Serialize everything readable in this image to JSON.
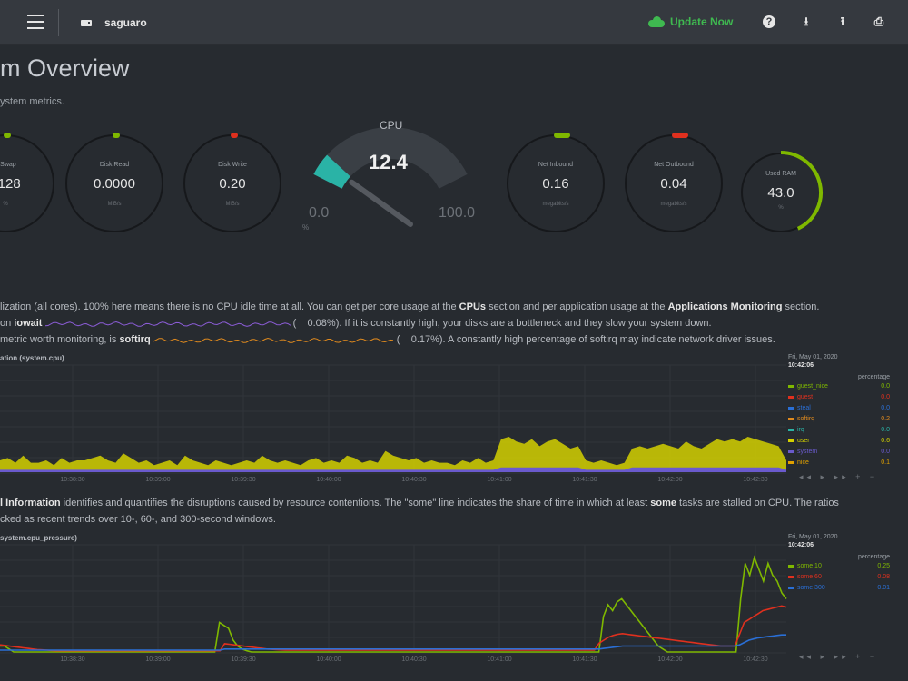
{
  "topbar": {
    "host": "saguaro",
    "update_label": "Update Now",
    "icons": [
      "menu-icon",
      "server-icon",
      "cloud-icon",
      "help-icon",
      "download-icon",
      "upload-icon",
      "print-icon"
    ],
    "help_glyph": "?",
    "download_glyph": "⭳",
    "upload_glyph": "⭱",
    "print_glyph": "⎙"
  },
  "page": {
    "title": "m Overview",
    "subtitle": "ystem metrics."
  },
  "gauges": [
    {
      "id": "swap",
      "label": "e Swap",
      "value": "0128",
      "unit": "%",
      "dot_color": "#7fb800"
    },
    {
      "id": "disk-read",
      "label": "Disk Read",
      "value": "0.0000",
      "unit": "MiB/s",
      "dot_color": "#7fb800"
    },
    {
      "id": "disk-write",
      "label": "Disk Write",
      "value": "0.20",
      "unit": "MiB/s",
      "dot_color": "#e0301e"
    },
    {
      "id": "net-inbound",
      "label": "Net Inbound",
      "value": "0.16",
      "unit": "megabits/s",
      "dot_color": "#7fb800"
    },
    {
      "id": "net-outbound",
      "label": "Net Outbound",
      "value": "0.04",
      "unit": "megabits/s",
      "dot_color": "#e0301e"
    },
    {
      "id": "used-ram",
      "label": "Used RAM",
      "value": "43.0",
      "unit": "%",
      "dot_color": "#7fb800",
      "fraction": 0.43
    }
  ],
  "cpu_gauge": {
    "title": "CPU",
    "value": 12.4,
    "value_label": "12.4",
    "min": "0.0",
    "max": "100.0",
    "unit": "%",
    "color": "#2ab3a6"
  },
  "descriptions": {
    "cpu_line1_pre": "lization (all cores). 100% here means there is no CPU idle time at all. You can get per core usage at the ",
    "cpu_line1_b1": "CPUs",
    "cpu_line1_mid": " section and per application usage at the ",
    "cpu_line1_b2": "Applications Monitoring",
    "cpu_line1_post": " section.",
    "cpu_line2_pre": "on ",
    "cpu_line2_b": "iowait",
    "cpu_line2_val": "0.08%). If it is constantly high, your disks are a bottleneck and they slow your system down.",
    "cpu_line3_pre": "metric worth monitoring, is ",
    "cpu_line3_b": "softirq",
    "cpu_line3_val": "0.17%). A constantly high percentage of softirq may indicate network driver issues.",
    "paren_open": "(",
    "pressure_line1_b": "l Information",
    "pressure_line1_pre": " identifies and quantifies the disruptions caused by resource contentions. The \"some\" line indicates the share of time in which at least ",
    "pressure_line1_b2": "some",
    "pressure_line1_post": " tasks are stalled on CPU. The ratios",
    "pressure_line2": "cked as recent trends over 10-, 60-, and 300-second windows."
  },
  "chart_data": [
    {
      "type": "area",
      "title": "ation (system.cpu)",
      "x": [
        "10:38:30",
        "10:39:00",
        "10:39:30",
        "10:40:00",
        "10:40:30",
        "10:41:00",
        "10:41:30",
        "10:42:00",
        "10:42:30",
        "10:43:00"
      ],
      "units": "percentage",
      "date": "Fri, May 01, 2020",
      "time": "10:42:06",
      "series": [
        {
          "name": "guest_nice",
          "value": "0.0",
          "color": "#7fb800"
        },
        {
          "name": "guest",
          "value": "0.0",
          "color": "#e0301e"
        },
        {
          "name": "steal",
          "value": "0.0",
          "color": "#2a6fd6"
        },
        {
          "name": "softirq",
          "value": "0.2",
          "color": "#e08a1e"
        },
        {
          "name": "irq",
          "value": "0.0",
          "color": "#2ab3a6"
        },
        {
          "name": "user",
          "value": "0.6",
          "color": "#d4d000"
        },
        {
          "name": "system",
          "value": "0.0",
          "color": "#6a5acd"
        },
        {
          "name": "nice",
          "value": "0.1",
          "color": "#e0a000"
        }
      ],
      "user_values": [
        4,
        5,
        3,
        6,
        3,
        3,
        4,
        2,
        5,
        3,
        4,
        4,
        5,
        6,
        4,
        3,
        7,
        5,
        3,
        4,
        2,
        3,
        4,
        2,
        6,
        4,
        3,
        2,
        4,
        3,
        2,
        3,
        4,
        3,
        6,
        4,
        3,
        4,
        3,
        2,
        4,
        5,
        3,
        4,
        3,
        6,
        5,
        3,
        4,
        3,
        8,
        6,
        5,
        4,
        5,
        3,
        4,
        3,
        3,
        2,
        4,
        3,
        5,
        3,
        4,
        12,
        13,
        11,
        10,
        12,
        9,
        11,
        12,
        10,
        8,
        9,
        4,
        3,
        4,
        3,
        2,
        3,
        8,
        9,
        8,
        9,
        10,
        9,
        8,
        11,
        9,
        8,
        10,
        12,
        11,
        12,
        11,
        13,
        12,
        11,
        10,
        9,
        4
      ],
      "system_values": [
        1,
        1,
        1,
        1,
        1,
        1,
        1,
        1,
        1,
        1,
        1,
        1,
        1,
        1,
        1,
        1,
        1,
        1,
        1,
        1,
        1,
        1,
        1,
        1,
        1,
        1,
        1,
        1,
        1,
        1,
        1,
        1,
        1,
        1,
        1,
        1,
        1,
        1,
        1,
        1,
        1,
        1,
        1,
        1,
        1,
        1,
        1,
        1,
        1,
        1,
        1,
        1,
        1,
        1,
        1,
        1,
        1,
        1,
        1,
        1,
        1,
        1,
        1,
        1,
        1,
        2,
        2,
        2,
        2,
        2,
        2,
        2,
        2,
        2,
        2,
        2,
        1,
        1,
        1,
        1,
        1,
        1,
        2,
        2,
        2,
        2,
        2,
        2,
        2,
        2,
        2,
        2,
        2,
        2,
        2,
        2,
        2,
        2,
        2,
        2,
        2,
        2,
        1
      ]
    },
    {
      "type": "line",
      "title": "system.cpu_pressure)",
      "x": [
        "10:38:30",
        "10:39:00",
        "10:39:30",
        "10:40:00",
        "10:40:30",
        "10:41:00",
        "10:41:30",
        "10:42:00",
        "10:42:30",
        "10:43:00"
      ],
      "units": "percentage",
      "date": "Fri, May 01, 2020",
      "time": "10:42:06",
      "series": [
        {
          "name": "some 10",
          "value": "0.25",
          "color": "#7fb800"
        },
        {
          "name": "some 60",
          "value": "0.08",
          "color": "#e0301e"
        },
        {
          "name": "some 300",
          "value": "0.01",
          "color": "#2a6fd6"
        }
      ],
      "some10": [
        1,
        1,
        0.5,
        0,
        0,
        0,
        0,
        0,
        0,
        0,
        0,
        0,
        0,
        0,
        0,
        0,
        0,
        0,
        0,
        0,
        0,
        0,
        0,
        0,
        0,
        0,
        0,
        0,
        0,
        0,
        0,
        0,
        0,
        0,
        0,
        0,
        0,
        0,
        0,
        0,
        0,
        0,
        0,
        0,
        0,
        0,
        0,
        0,
        5,
        4.5,
        4,
        2,
        1,
        0.5,
        0.2,
        0,
        0,
        0,
        0,
        0,
        0,
        0,
        0,
        0,
        0,
        0,
        0,
        0,
        0,
        0,
        0,
        0,
        0,
        0,
        0,
        0,
        0,
        0,
        0,
        0,
        0,
        0,
        0,
        0,
        0,
        0,
        0,
        0,
        0,
        0,
        0,
        0,
        0,
        0,
        0,
        0,
        0,
        0,
        0,
        0,
        0,
        0,
        0,
        0,
        0,
        0,
        0,
        0,
        0,
        0,
        0,
        0,
        0,
        0,
        0,
        0,
        0,
        0,
        0,
        0,
        0,
        0,
        0,
        0,
        0,
        0,
        0,
        0,
        0,
        0,
        0,
        0,
        6,
        8,
        7,
        8.5,
        9,
        8,
        7,
        6,
        5,
        4,
        3,
        2,
        1,
        0.5,
        0,
        0,
        0,
        0,
        0,
        0,
        0,
        0,
        0,
        0,
        0,
        0,
        0,
        0,
        0,
        0,
        9,
        15,
        13,
        16,
        14,
        12,
        15,
        13,
        12,
        10,
        9
      ],
      "some60": [
        1.2,
        1.1,
        1,
        0.9,
        0.8,
        0.7,
        0.6,
        0.5,
        0.4,
        0.35,
        0.3,
        0.25,
        0.2,
        0.2,
        0.2,
        0.2,
        0.2,
        0.2,
        0.2,
        0.2,
        0.2,
        0.2,
        0.2,
        0.2,
        0.2,
        0.2,
        0.2,
        0.2,
        0.2,
        0.2,
        0.2,
        0.2,
        0.2,
        0.2,
        0.2,
        0.2,
        0.2,
        0.2,
        0.2,
        0.2,
        0.2,
        0.2,
        0.2,
        0.2,
        0.2,
        0.2,
        0.2,
        0.2,
        1.4,
        1.3,
        1.2,
        1.1,
        1,
        0.9,
        0.8,
        0.7,
        0.6,
        0.5,
        0.45,
        0.4,
        0.35,
        0.3,
        0.3,
        0.3,
        0.3,
        0.3,
        0.3,
        0.3,
        0.3,
        0.3,
        0.3,
        0.3,
        0.3,
        0.3,
        0.3,
        0.3,
        0.3,
        0.3,
        0.3,
        0.3,
        0.3,
        0.3,
        0.3,
        0.3,
        0.3,
        0.3,
        0.3,
        0.3,
        0.3,
        0.3,
        0.3,
        0.3,
        0.3,
        0.3,
        0.3,
        0.3,
        0.3,
        0.3,
        0.3,
        0.3,
        0.3,
        0.3,
        0.3,
        0.3,
        0.3,
        0.3,
        0.3,
        0.3,
        0.3,
        0.3,
        0.3,
        0.3,
        0.3,
        0.3,
        0.3,
        0.3,
        0.3,
        0.3,
        0.3,
        0.3,
        0.3,
        0.3,
        0.3,
        0.3,
        0.3,
        0.3,
        0.3,
        0.3,
        1.5,
        2,
        2.5,
        2.8,
        3,
        3.1,
        3,
        2.9,
        2.8,
        2.7,
        2.6,
        2.5,
        2.4,
        2.3,
        2.2,
        2.1,
        2,
        1.9,
        1.8,
        1.7,
        1.6,
        1.5,
        1.4,
        1.3,
        1.2,
        1.1,
        1,
        1,
        1,
        1,
        3,
        5,
        5.5,
        6,
        6.5,
        7,
        7.2,
        7.4,
        7.6,
        7.8,
        7.6
      ],
      "some300": [
        0.3,
        0.3,
        0.3,
        0.3,
        0.3,
        0.3,
        0.3,
        0.3,
        0.3,
        0.3,
        0.3,
        0.3,
        0.3,
        0.3,
        0.3,
        0.3,
        0.3,
        0.3,
        0.3,
        0.3,
        0.3,
        0.3,
        0.3,
        0.3,
        0.3,
        0.3,
        0.3,
        0.3,
        0.3,
        0.3,
        0.3,
        0.3,
        0.3,
        0.3,
        0.3,
        0.3,
        0.3,
        0.3,
        0.3,
        0.3,
        0.3,
        0.3,
        0.3,
        0.3,
        0.3,
        0.3,
        0.3,
        0.3,
        0.5,
        0.5,
        0.5,
        0.5,
        0.5,
        0.5,
        0.5,
        0.5,
        0.5,
        0.5,
        0.5,
        0.5,
        0.5,
        0.5,
        0.5,
        0.5,
        0.5,
        0.5,
        0.5,
        0.5,
        0.5,
        0.5,
        0.5,
        0.5,
        0.5,
        0.5,
        0.5,
        0.5,
        0.5,
        0.5,
        0.5,
        0.5,
        0.5,
        0.5,
        0.5,
        0.5,
        0.5,
        0.5,
        0.5,
        0.5,
        0.5,
        0.5,
        0.5,
        0.5,
        0.5,
        0.5,
        0.5,
        0.5,
        0.5,
        0.5,
        0.5,
        0.5,
        0.5,
        0.5,
        0.5,
        0.5,
        0.5,
        0.5,
        0.5,
        0.5,
        0.5,
        0.5,
        0.5,
        0.5,
        0.5,
        0.5,
        0.5,
        0.5,
        0.5,
        0.5,
        0.5,
        0.5,
        0.5,
        0.5,
        0.5,
        0.5,
        0.5,
        0.5,
        0.5,
        0.5,
        0.5,
        0.6,
        0.7,
        0.8,
        0.9,
        1,
        1,
        1,
        1,
        1,
        1,
        1,
        1,
        1,
        1,
        1,
        1,
        1,
        1,
        1,
        1,
        1,
        1,
        1,
        1,
        1,
        1,
        1,
        1,
        1,
        1.2,
        1.6,
        2,
        2.2,
        2.4,
        2.5,
        2.6,
        2.7,
        2.8,
        2.9,
        2.9
      ]
    }
  ],
  "chart_tools": "◂◂ ▸ ▸▸ + −"
}
